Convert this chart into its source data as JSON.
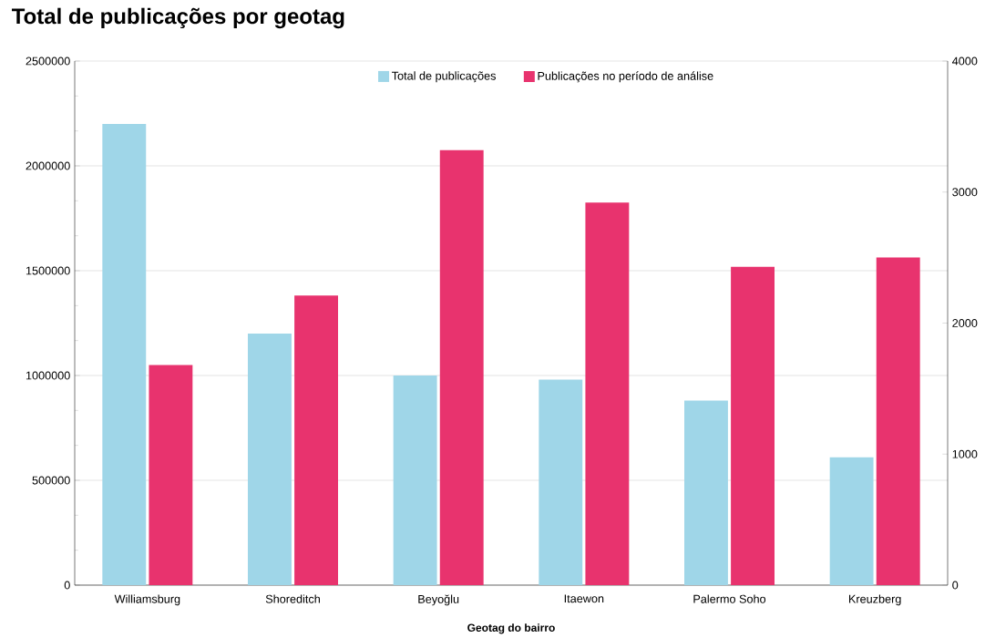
{
  "chart_data": {
    "type": "bar",
    "title": "Total de publicações por geotag",
    "xlabel": "Geotag do bairro",
    "categories": [
      "Williamsburg",
      "Shoreditch",
      "Beyoğlu",
      "Itaewon",
      "Palermo Soho",
      "Kreuzberg"
    ],
    "series": [
      {
        "name": "Total de publicações",
        "color": "#9fd6e8",
        "values": [
          2200000,
          1200000,
          1000000,
          980000,
          880000,
          610000
        ]
      },
      {
        "name": "Publicações no período de análise",
        "color": "#e8336e",
        "axis": "y2",
        "values": [
          1680,
          2210,
          3320,
          2920,
          2430,
          2500
        ]
      }
    ],
    "ylim": [
      0,
      2500000
    ],
    "yticks": [
      0,
      500000,
      1000000,
      1500000,
      2000000,
      2500000
    ],
    "y2lim": [
      0,
      4000
    ],
    "y2ticks": [
      0,
      1000,
      2000,
      3000,
      4000
    ],
    "grid": "y",
    "legend": "top"
  }
}
